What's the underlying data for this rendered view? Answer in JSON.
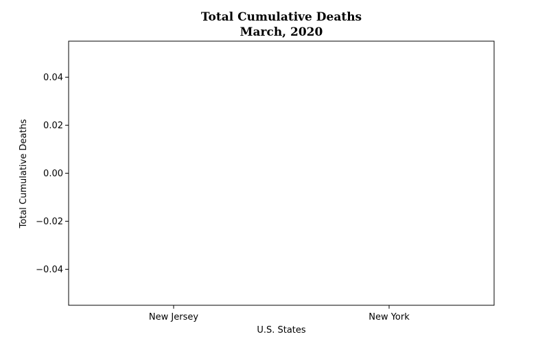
{
  "chart_data": {
    "type": "bar",
    "title": "Total Cumulative Deaths",
    "subtitle": "March, 2020",
    "xlabel": "U.S. States",
    "ylabel": "Total Cumulative Deaths",
    "categories": [
      "New Jersey",
      "New York"
    ],
    "values": [
      0,
      0
    ],
    "ylim": [
      -0.055,
      0.055
    ],
    "yticks": [
      0.04,
      0.02,
      0.0,
      -0.02,
      -0.04
    ],
    "ytick_labels": [
      "0.04",
      "0.02",
      "0.00",
      "−0.02",
      "−0.04"
    ],
    "grid": false,
    "legend": "none"
  }
}
